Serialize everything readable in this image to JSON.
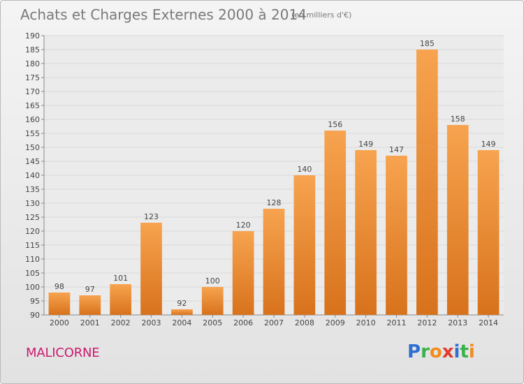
{
  "title": "Achats et Charges Externes 2000 à 2014",
  "subtitle": "(en milliers d'€)",
  "commune": "MALICORNE",
  "logo": {
    "text": "Proxiti",
    "letters": [
      {
        "ch": "P",
        "color": "#2f6fd1"
      },
      {
        "ch": "r",
        "color": "#39b24a"
      },
      {
        "ch": "o",
        "color": "#f28c1c"
      },
      {
        "ch": "x",
        "color": "#e23a2c"
      },
      {
        "ch": "i",
        "color": "#2f6fd1"
      },
      {
        "ch": "t",
        "color": "#39b24a"
      },
      {
        "ch": "i",
        "color": "#f28c1c"
      }
    ]
  },
  "colors": {
    "bar_top": "#f7a34f",
    "bar_bottom": "#d8721c",
    "grid": "#d9d9d9",
    "axis_text": "#444444",
    "title": "#7a7a7a",
    "commune": "#cc1a6e"
  },
  "chart_data": {
    "type": "bar",
    "categories": [
      "2000",
      "2001",
      "2002",
      "2003",
      "2004",
      "2005",
      "2006",
      "2007",
      "2008",
      "2009",
      "2010",
      "2011",
      "2012",
      "2013",
      "2014"
    ],
    "values": [
      98,
      97,
      101,
      123,
      92,
      100,
      120,
      128,
      140,
      156,
      149,
      147,
      185,
      158,
      149
    ],
    "ylim": [
      90,
      190
    ],
    "ytick_step": 5,
    "grid": true,
    "data_labels": true
  }
}
